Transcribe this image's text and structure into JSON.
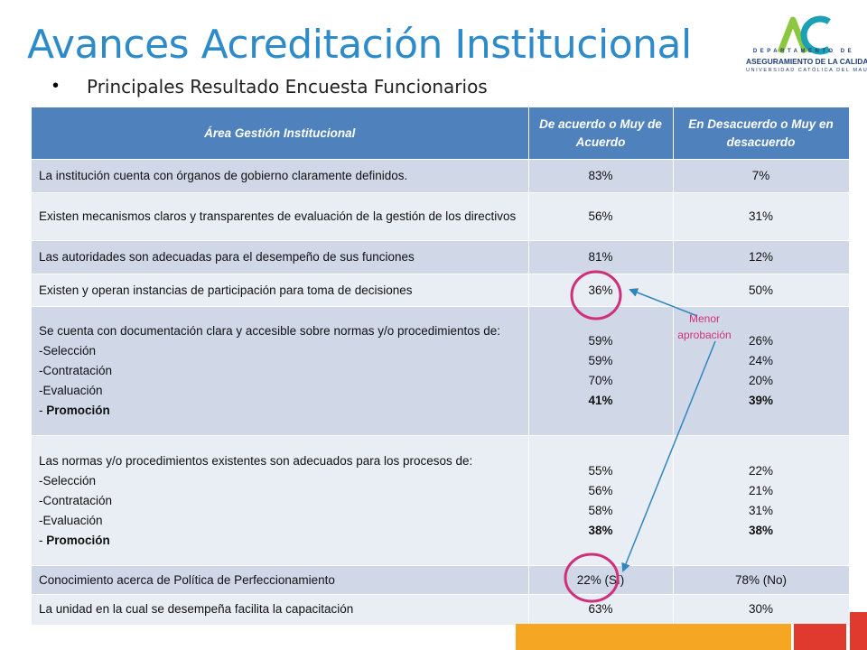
{
  "header": {
    "title": "Avances Acreditación Institucional",
    "bullet": "•",
    "subtitle": "Principales Resultado Encuesta Funcionarios"
  },
  "logo": {
    "line1": "DEPARTAMENTO DE",
    "line2": "ASEGURAMIENTO DE LA CALIDAD",
    "line3": "UNIVERSIDAD CATÓLICA DEL MAULE",
    "colors": {
      "green": "#8DC63F",
      "teal": "#1CA0B5",
      "navy": "#1F3E7A"
    }
  },
  "table": {
    "headers": [
      "Área Gestión Institucional",
      "De acuerdo o Muy de Acuerdo",
      "En Desacuerdo o Muy en desacuerdo"
    ],
    "rows": [
      {
        "question": "La institución cuenta con órganos de gobierno claramente definidos.",
        "agree": "83%",
        "disagree": "7%"
      },
      {
        "question": "Existen mecanismos claros y transparentes de evaluación de la gestión de los directivos",
        "agree": "56%",
        "disagree": "31%"
      },
      {
        "question": "Las autoridades son adecuadas para el desempeño de sus funciones",
        "agree": "81%",
        "disagree": "12%"
      },
      {
        "question": "Existen y operan instancias de participación para toma de decisiones",
        "agree": "36%",
        "disagree": "50%"
      },
      {
        "question": "Se cuenta con documentación clara y accesible sobre normas y/o procedimientos de:",
        "items": [
          "-Selección",
          "-Contratación",
          "-Evaluación",
          "- "
        ],
        "last_item_bold": "Promoción",
        "agree": [
          "59%",
          "59%",
          "70%",
          "41%"
        ],
        "disagree": [
          "26%",
          "24%",
          "20%",
          "39%"
        ]
      },
      {
        "question": "Las normas y/o procedimientos existentes son adecuados para los procesos de:",
        "items": [
          "-Selección",
          "-Contratación",
          "-Evaluación",
          "- "
        ],
        "last_item_bold": "Promoción",
        "agree": [
          "55%",
          "56%",
          "58%",
          "38%"
        ],
        "disagree": [
          "22%",
          "21%",
          "31%",
          "38%"
        ]
      },
      {
        "question": "Conocimiento acerca de Política de Perfeccionamiento",
        "agree": "22% (Sí)",
        "disagree": "78% (No)"
      },
      {
        "question": "La unidad en la cual se desempeña facilita la capacitación",
        "agree": "63%",
        "disagree": "30%"
      }
    ]
  },
  "annotation": {
    "label": "Menor aprobación",
    "color": "#D0307A",
    "arrow_color": "#2E86C1"
  },
  "colors": {
    "title": "#2E8BC9",
    "header_bg": "#4F81BD",
    "row_dark": "#D0D8E8",
    "row_light": "#E9EDF4",
    "orange": "#F5A623",
    "red": "#E03A2E"
  }
}
